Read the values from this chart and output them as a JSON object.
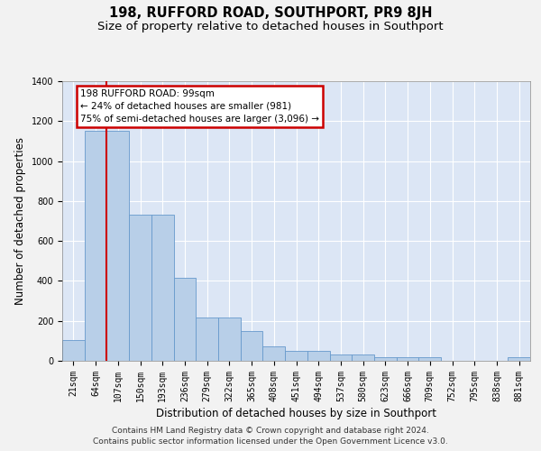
{
  "title": "198, RUFFORD ROAD, SOUTHPORT, PR9 8JH",
  "subtitle": "Size of property relative to detached houses in Southport",
  "xlabel": "Distribution of detached houses by size in Southport",
  "ylabel": "Number of detached properties",
  "footer_line1": "Contains HM Land Registry data © Crown copyright and database right 2024.",
  "footer_line2": "Contains public sector information licensed under the Open Government Licence v3.0.",
  "categories": [
    "21sqm",
    "64sqm",
    "107sqm",
    "150sqm",
    "193sqm",
    "236sqm",
    "279sqm",
    "322sqm",
    "365sqm",
    "408sqm",
    "451sqm",
    "494sqm",
    "537sqm",
    "580sqm",
    "623sqm",
    "666sqm",
    "709sqm",
    "752sqm",
    "795sqm",
    "838sqm",
    "881sqm"
  ],
  "values": [
    105,
    1150,
    1150,
    730,
    730,
    415,
    215,
    215,
    148,
    72,
    48,
    48,
    32,
    32,
    18,
    18,
    18,
    0,
    0,
    0,
    18
  ],
  "bar_color": "#b8cfe8",
  "bar_edge_color": "#6699cc",
  "property_line_bar_index": 2,
  "annotation_line1": "198 RUFFORD ROAD: 99sqm",
  "annotation_line2": "← 24% of detached houses are smaller (981)",
  "annotation_line3": "75% of semi-detached houses are larger (3,096) →",
  "annotation_box_facecolor": "#ffffff",
  "annotation_box_edgecolor": "#cc0000",
  "property_line_color": "#cc0000",
  "ylim": [
    0,
    1400
  ],
  "yticks": [
    0,
    200,
    400,
    600,
    800,
    1000,
    1200,
    1400
  ],
  "plot_bg_color": "#dce6f5",
  "grid_color": "#ffffff",
  "fig_bg_color": "#f2f2f2",
  "title_fontsize": 10.5,
  "subtitle_fontsize": 9.5,
  "axis_label_fontsize": 8.5,
  "tick_fontsize": 7,
  "annotation_fontsize": 7.5,
  "footer_fontsize": 6.5
}
